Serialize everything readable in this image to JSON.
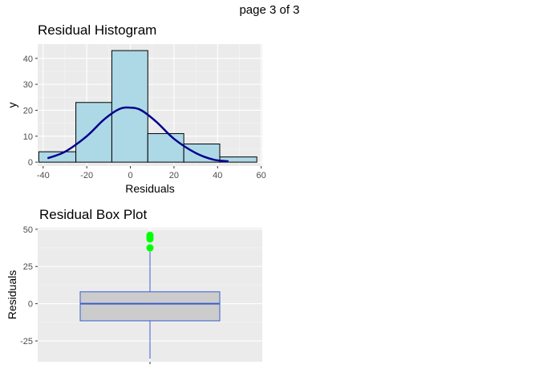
{
  "page_label": "page 3 of 3",
  "chart_data": [
    {
      "type": "bar",
      "title": "Residual Histogram",
      "xlabel": "Residuals",
      "ylabel": "y",
      "xlim": [
        -42.5,
        60.5
      ],
      "ylim": [
        -1.5,
        45.5
      ],
      "xticks": [
        -40,
        -20,
        0,
        20,
        40,
        60
      ],
      "yticks": [
        0,
        10,
        20,
        30,
        40
      ],
      "bins": [
        {
          "x0": -42,
          "x1": -25,
          "count": 4
        },
        {
          "x0": -25,
          "x1": -8.5,
          "count": 23
        },
        {
          "x0": -8.5,
          "x1": 8,
          "count": 43
        },
        {
          "x0": 8,
          "x1": 24.5,
          "count": 11
        },
        {
          "x0": 24.5,
          "x1": 41,
          "count": 7
        },
        {
          "x0": 41,
          "x1": 58,
          "count": 2
        }
      ],
      "bar_fill": "#add8e6",
      "bar_stroke": "#000000",
      "density_curve": {
        "color": "#00008b",
        "x": [
          -38,
          -30,
          -20,
          -12,
          -5,
          0,
          5,
          12,
          20,
          30,
          38,
          45
        ],
        "y": [
          1.5,
          4,
          10,
          16.5,
          20.5,
          21,
          20,
          15.5,
          9,
          3.5,
          1,
          0.3
        ]
      },
      "grid": true
    },
    {
      "type": "box",
      "title": "Residual Box Plot",
      "ylabel": "Residuals",
      "ylim": [
        -39,
        51
      ],
      "yticks": [
        -25,
        0,
        25,
        50
      ],
      "box": {
        "whisker_low": -37,
        "q1": -11.5,
        "median": 0,
        "q3": 8,
        "whisker_high": 35
      },
      "outliers": [
        37.5,
        43.5,
        45,
        46
      ],
      "box_fill": "#cccccc",
      "box_stroke": "#3a5fcd",
      "outlier_color": "#00ff00",
      "grid": true
    }
  ]
}
